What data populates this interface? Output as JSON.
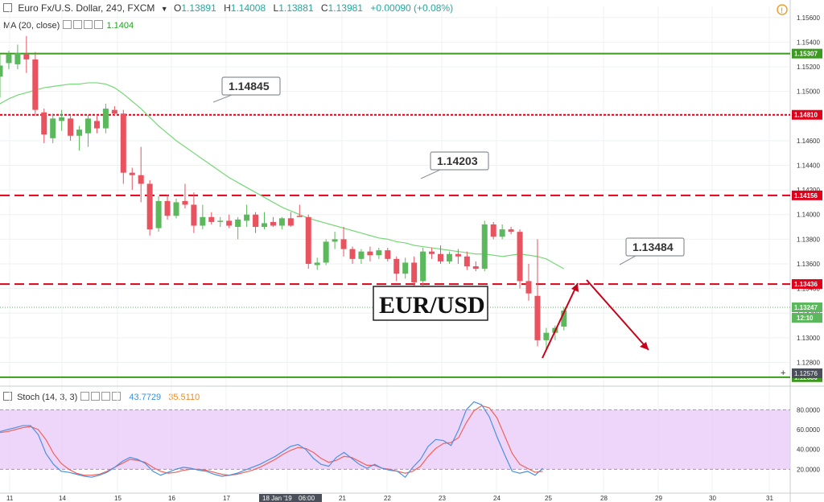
{
  "header": {
    "title": "Euro Fx/U.S. Dollar, 240, FXCM",
    "ohlc": [
      {
        "k": "O",
        "v": "1.13891"
      },
      {
        "k": "H",
        "v": "1.14008"
      },
      {
        "k": "L",
        "v": "1.13881"
      },
      {
        "k": "C",
        "v": "1.13981"
      }
    ],
    "change": "+0.00090 (+0.08%)"
  },
  "ma_indicator": {
    "label": "MA (20, close)",
    "value": "1.1404"
  },
  "stoch_indicator": {
    "label": "Stoch (14, 3, 3)",
    "k_value": "43.7729",
    "d_value": "35.5110"
  },
  "annotation_text": "EUR/USD",
  "colors": {
    "up": "#5cb85c",
    "down": "#e8535f",
    "ma": "#76d876",
    "stoch_k": "#4a90e2",
    "stoch_d": "#f0625a",
    "support": "#3c9a1e",
    "resistance": "#e0001a",
    "band": "#e8c8f8"
  },
  "chart_data": {
    "type": "candlestick",
    "x_tick_labels": [
      "11",
      "14",
      "15",
      "16",
      "17",
      "18 Jan '19",
      "06:00",
      "21",
      "22",
      "23",
      "24",
      "25",
      "28",
      "29",
      "30",
      "31"
    ],
    "y_tick_labels": [
      "1.15600",
      "1.15400",
      "1.15200",
      "1.15000",
      "1.14800",
      "1.14600",
      "1.14400",
      "1.14200",
      "1.14000",
      "1.13800",
      "1.13600",
      "1.13400",
      "1.13200",
      "1.13000",
      "1.12800"
    ],
    "ylim": [
      1.1262,
      1.1569
    ],
    "candles": [
      {
        "o": 1.1512,
        "h": 1.153,
        "l": 1.1495,
        "c": 1.1521
      },
      {
        "o": 1.1523,
        "h": 1.1533,
        "l": 1.1518,
        "c": 1.153
      },
      {
        "o": 1.1522,
        "h": 1.1538,
        "l": 1.1518,
        "c": 1.1531
      },
      {
        "o": 1.153,
        "h": 1.1545,
        "l": 1.1515,
        "c": 1.1526
      },
      {
        "o": 1.1526,
        "h": 1.1532,
        "l": 1.148,
        "c": 1.1485
      },
      {
        "o": 1.1483,
        "h": 1.1486,
        "l": 1.1458,
        "c": 1.1465
      },
      {
        "o": 1.1462,
        "h": 1.1482,
        "l": 1.1458,
        "c": 1.1478
      },
      {
        "o": 1.1476,
        "h": 1.1485,
        "l": 1.1468,
        "c": 1.1479
      },
      {
        "o": 1.1478,
        "h": 1.148,
        "l": 1.146,
        "c": 1.1464
      },
      {
        "o": 1.1464,
        "h": 1.1472,
        "l": 1.1452,
        "c": 1.1469
      },
      {
        "o": 1.1466,
        "h": 1.1481,
        "l": 1.1455,
        "c": 1.1478
      },
      {
        "o": 1.1476,
        "h": 1.148,
        "l": 1.1466,
        "c": 1.147
      },
      {
        "o": 1.147,
        "h": 1.149,
        "l": 1.1466,
        "c": 1.1486
      },
      {
        "o": 1.1485,
        "h": 1.1488,
        "l": 1.148,
        "c": 1.1482
      },
      {
        "o": 1.1482,
        "h": 1.1485,
        "l": 1.1425,
        "c": 1.1434
      },
      {
        "o": 1.1434,
        "h": 1.1438,
        "l": 1.142,
        "c": 1.1432
      },
      {
        "o": 1.1432,
        "h": 1.1455,
        "l": 1.141,
        "c": 1.1425
      },
      {
        "o": 1.1425,
        "h": 1.1428,
        "l": 1.1383,
        "c": 1.1388
      },
      {
        "o": 1.1389,
        "h": 1.1415,
        "l": 1.1386,
        "c": 1.1411
      },
      {
        "o": 1.1411,
        "h": 1.1416,
        "l": 1.1396,
        "c": 1.1399
      },
      {
        "o": 1.1399,
        "h": 1.1413,
        "l": 1.1397,
        "c": 1.141
      },
      {
        "o": 1.1411,
        "h": 1.1425,
        "l": 1.1405,
        "c": 1.1408
      },
      {
        "o": 1.1408,
        "h": 1.1418,
        "l": 1.1385,
        "c": 1.1391
      },
      {
        "o": 1.1391,
        "h": 1.1408,
        "l": 1.1388,
        "c": 1.1398
      },
      {
        "o": 1.1398,
        "h": 1.1402,
        "l": 1.1392,
        "c": 1.1394
      },
      {
        "o": 1.1394,
        "h": 1.1398,
        "l": 1.139,
        "c": 1.1395
      },
      {
        "o": 1.1395,
        "h": 1.14,
        "l": 1.1389,
        "c": 1.1391
      },
      {
        "o": 1.139,
        "h": 1.1398,
        "l": 1.138,
        "c": 1.1396
      },
      {
        "o": 1.1395,
        "h": 1.1408,
        "l": 1.139,
        "c": 1.14
      },
      {
        "o": 1.14,
        "h": 1.1402,
        "l": 1.1385,
        "c": 1.139
      },
      {
        "o": 1.139,
        "h": 1.1402,
        "l": 1.1388,
        "c": 1.1393
      },
      {
        "o": 1.1394,
        "h": 1.1398,
        "l": 1.139,
        "c": 1.1391
      },
      {
        "o": 1.1391,
        "h": 1.1398,
        "l": 1.1388,
        "c": 1.1397
      },
      {
        "o": 1.1397,
        "h": 1.1402,
        "l": 1.139,
        "c": 1.1391
      },
      {
        "o": 1.1399,
        "h": 1.1408,
        "l": 1.1398,
        "c": 1.1398
      },
      {
        "o": 1.1398,
        "h": 1.14,
        "l": 1.1356,
        "c": 1.136
      },
      {
        "o": 1.1359,
        "h": 1.1365,
        "l": 1.1355,
        "c": 1.1361
      },
      {
        "o": 1.1361,
        "h": 1.138,
        "l": 1.1359,
        "c": 1.1378
      },
      {
        "o": 1.1378,
        "h": 1.1386,
        "l": 1.1372,
        "c": 1.138
      },
      {
        "o": 1.138,
        "h": 1.139,
        "l": 1.1366,
        "c": 1.1372
      },
      {
        "o": 1.1372,
        "h": 1.1374,
        "l": 1.136,
        "c": 1.1364
      },
      {
        "o": 1.1364,
        "h": 1.1372,
        "l": 1.136,
        "c": 1.137
      },
      {
        "o": 1.137,
        "h": 1.1374,
        "l": 1.1362,
        "c": 1.1367
      },
      {
        "o": 1.1367,
        "h": 1.1373,
        "l": 1.1364,
        "c": 1.1371
      },
      {
        "o": 1.1371,
        "h": 1.1373,
        "l": 1.1362,
        "c": 1.1364
      },
      {
        "o": 1.1364,
        "h": 1.1366,
        "l": 1.1346,
        "c": 1.1352
      },
      {
        "o": 1.1352,
        "h": 1.1365,
        "l": 1.1348,
        "c": 1.1361
      },
      {
        "o": 1.1361,
        "h": 1.1366,
        "l": 1.134,
        "c": 1.1345
      },
      {
        "o": 1.1346,
        "h": 1.1373,
        "l": 1.1342,
        "c": 1.137
      },
      {
        "o": 1.137,
        "h": 1.1373,
        "l": 1.1364,
        "c": 1.1368
      },
      {
        "o": 1.1368,
        "h": 1.1375,
        "l": 1.136,
        "c": 1.1362
      },
      {
        "o": 1.1362,
        "h": 1.137,
        "l": 1.136,
        "c": 1.1368
      },
      {
        "o": 1.1368,
        "h": 1.1372,
        "l": 1.136,
        "c": 1.1366
      },
      {
        "o": 1.1366,
        "h": 1.137,
        "l": 1.1355,
        "c": 1.1358
      },
      {
        "o": 1.1358,
        "h": 1.1362,
        "l": 1.1354,
        "c": 1.1356
      },
      {
        "o": 1.1356,
        "h": 1.1395,
        "l": 1.1354,
        "c": 1.1392
      },
      {
        "o": 1.1392,
        "h": 1.1394,
        "l": 1.138,
        "c": 1.1382
      },
      {
        "o": 1.1382,
        "h": 1.1392,
        "l": 1.138,
        "c": 1.1388
      },
      {
        "o": 1.1388,
        "h": 1.139,
        "l": 1.1384,
        "c": 1.1386
      },
      {
        "o": 1.1386,
        "h": 1.1388,
        "l": 1.134,
        "c": 1.1346
      },
      {
        "o": 1.1346,
        "h": 1.136,
        "l": 1.133,
        "c": 1.1336
      },
      {
        "o": 1.1334,
        "h": 1.138,
        "l": 1.1293,
        "c": 1.1298
      },
      {
        "o": 1.1298,
        "h": 1.1308,
        "l": 1.129,
        "c": 1.1304
      },
      {
        "o": 1.1304,
        "h": 1.131,
        "l": 1.1298,
        "c": 1.1308
      },
      {
        "o": 1.1309,
        "h": 1.1325,
        "l": 1.1306,
        "c": 1.1322
      }
    ],
    "moving_average": {
      "name": "MA (20, close)",
      "values": [
        1.149,
        1.1494,
        1.1497,
        1.1499,
        1.1501,
        1.1503,
        1.1504,
        1.1505,
        1.1506,
        1.1506,
        1.1507,
        1.1507,
        1.1506,
        1.1503,
        1.1498,
        1.1492,
        1.1486,
        1.1479,
        1.1472,
        1.1466,
        1.146,
        1.1455,
        1.145,
        1.1445,
        1.144,
        1.1435,
        1.143,
        1.1426,
        1.1422,
        1.1418,
        1.1414,
        1.141,
        1.1406,
        1.1403,
        1.14,
        1.1397,
        1.1395,
        1.1393,
        1.1391,
        1.1389,
        1.1387,
        1.1385,
        1.1383,
        1.1381,
        1.138,
        1.1378,
        1.1377,
        1.1375,
        1.1374,
        1.1373,
        1.1372,
        1.1371,
        1.137,
        1.1369,
        1.1368,
        1.1368,
        1.1367,
        1.1366,
        1.1367,
        1.1368,
        1.1367,
        1.1366,
        1.1364,
        1.136,
        1.1356
      ]
    },
    "stochastic": {
      "ylim": [
        0,
        100
      ],
      "y_tick_labels": [
        "80.0000",
        "60.0000",
        "40.0000",
        "20.0000"
      ],
      "levels": [
        80,
        20
      ],
      "k": [
        58,
        60,
        62,
        64,
        64,
        55,
        36,
        25,
        18,
        17,
        15,
        13,
        12,
        14,
        17,
        22,
        28,
        32,
        30,
        26,
        18,
        14,
        17,
        20,
        22,
        21,
        19,
        18,
        15,
        13,
        14,
        16,
        19,
        22,
        25,
        29,
        33,
        38,
        43,
        45,
        40,
        31,
        25,
        23,
        32,
        37,
        31,
        25,
        21,
        25,
        21,
        19,
        18,
        12,
        22,
        30,
        43,
        50,
        49,
        44,
        60,
        80,
        88,
        85,
        73,
        53,
        35,
        18,
        16,
        18,
        14,
        21
      ],
      "d": [
        57,
        58,
        60,
        62,
        63,
        60,
        50,
        36,
        26,
        20,
        16,
        14,
        14,
        15,
        18,
        22,
        26,
        30,
        29,
        27,
        22,
        18,
        16,
        17,
        19,
        20,
        20,
        19,
        17,
        15,
        14,
        15,
        17,
        19,
        22,
        26,
        30,
        35,
        39,
        42,
        41,
        37,
        31,
        27,
        29,
        33,
        32,
        28,
        24,
        24,
        21,
        20,
        18,
        16,
        18,
        23,
        33,
        41,
        46,
        47,
        52,
        67,
        79,
        84,
        82,
        72,
        54,
        36,
        25,
        21,
        17,
        18
      ]
    },
    "horizontal_levels": [
      {
        "value": 1.15307,
        "label": "1.15307",
        "style": "solid",
        "color": "#3c9a1e"
      },
      {
        "value": 1.1481,
        "label": "1.14810",
        "style": "dotted",
        "color": "#e0001a"
      },
      {
        "value": 1.14156,
        "label": "1.14156",
        "style": "dashed",
        "color": "#e0001a"
      },
      {
        "value": 1.13436,
        "label": "1.13436",
        "style": "dashed",
        "color": "#e0001a"
      },
      {
        "value": 1.13247,
        "label": "1.13247",
        "style": "price",
        "color": "#5cb85c"
      },
      {
        "value": 1.1268,
        "label": "1.12680",
        "style": "solid",
        "color": "#3c9a1e"
      }
    ],
    "price_label_extra": {
      "value": "1.13247",
      "time": "12:10"
    },
    "crosshair_label": "1.12576",
    "callouts": [
      {
        "text": "1.14845",
        "price": 1.14845
      },
      {
        "text": "1.14203",
        "price": 1.14203
      },
      {
        "text": "1.13484",
        "price": 1.13484
      }
    ],
    "forecast_path": [
      {
        "step": 63,
        "price": 1.1264
      },
      {
        "step": 67,
        "price": 1.1329
      },
      {
        "step": 69,
        "price": 1.1332
      },
      {
        "step": 75,
        "price": 1.1272
      }
    ]
  }
}
